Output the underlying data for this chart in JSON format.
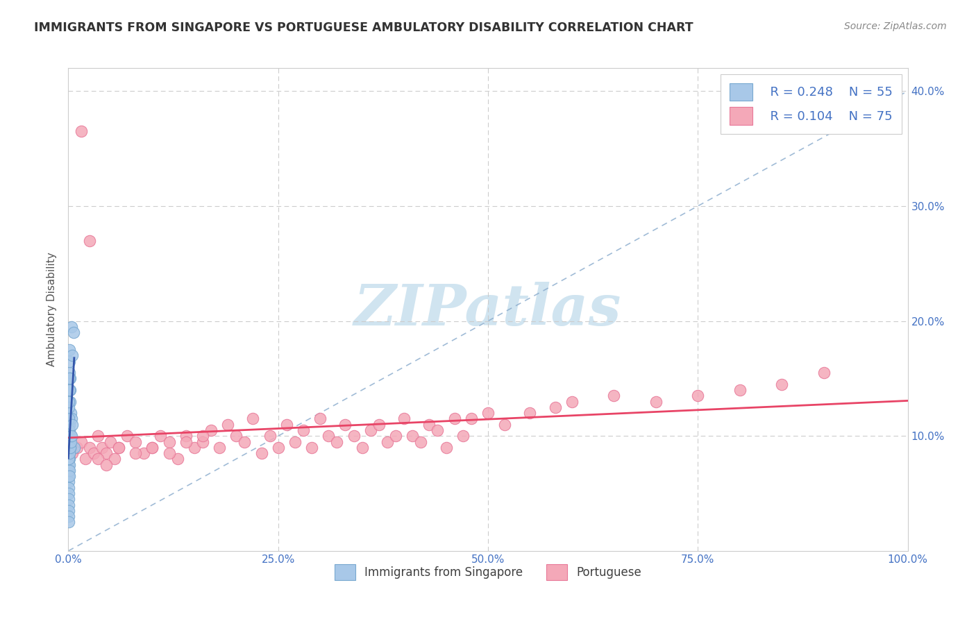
{
  "title": "IMMIGRANTS FROM SINGAPORE VS PORTUGUESE AMBULATORY DISABILITY CORRELATION CHART",
  "source": "Source: ZipAtlas.com",
  "ylabel": "Ambulatory Disability",
  "xlim": [
    0,
    100
  ],
  "ylim": [
    0,
    42
  ],
  "series1_color": "#a8c8e8",
  "series2_color": "#f4a8b8",
  "series1_edge": "#78a8d0",
  "series2_edge": "#e87898",
  "line1_color": "#3355aa",
  "line2_color": "#e84466",
  "diag_color": "#88aacc",
  "legend_text_color": "#4472c4",
  "legend_r1": "R = 0.248",
  "legend_n1": "N = 55",
  "legend_r2": "R = 0.104",
  "legend_n2": "N = 75",
  "legend_label1": "Immigrants from Singapore",
  "legend_label2": "Portuguese",
  "title_color": "#333333",
  "grid_color": "#cccccc",
  "watermark_color": "#d0e4f0",
  "background_color": "#ffffff",
  "singapore_x": [
    0.05,
    0.05,
    0.05,
    0.05,
    0.05,
    0.05,
    0.05,
    0.05,
    0.05,
    0.05,
    0.05,
    0.05,
    0.05,
    0.05,
    0.05,
    0.05,
    0.05,
    0.05,
    0.05,
    0.05,
    0.1,
    0.1,
    0.1,
    0.1,
    0.1,
    0.1,
    0.1,
    0.1,
    0.15,
    0.15,
    0.15,
    0.2,
    0.2,
    0.25,
    0.3,
    0.35,
    0.4,
    0.5,
    0.6,
    0.7,
    0.05,
    0.05,
    0.1,
    0.1,
    0.2,
    0.3,
    0.05,
    0.1,
    0.2,
    0.3,
    0.4,
    0.5,
    0.05,
    0.1,
    0.15
  ],
  "singapore_y": [
    9.0,
    9.2,
    9.5,
    9.8,
    10.0,
    10.2,
    10.5,
    8.5,
    8.0,
    7.5,
    7.0,
    6.5,
    6.0,
    5.5,
    5.0,
    4.5,
    4.0,
    3.5,
    3.0,
    2.5,
    9.5,
    10.0,
    11.0,
    8.5,
    8.0,
    7.5,
    7.0,
    6.5,
    15.5,
    16.5,
    17.5,
    14.0,
    15.0,
    13.0,
    12.0,
    11.5,
    19.5,
    17.0,
    19.0,
    9.0,
    11.5,
    12.5,
    9.5,
    10.5,
    9.0,
    10.0,
    8.0,
    8.5,
    9.0,
    9.5,
    10.0,
    11.0,
    13.0,
    14.0,
    15.0
  ],
  "portuguese_x": [
    0.5,
    1.0,
    1.5,
    2.0,
    2.5,
    3.0,
    3.5,
    4.0,
    4.5,
    5.0,
    5.5,
    6.0,
    7.0,
    8.0,
    9.0,
    10.0,
    11.0,
    12.0,
    13.0,
    14.0,
    15.0,
    16.0,
    17.0,
    18.0,
    19.0,
    20.0,
    21.0,
    22.0,
    23.0,
    24.0,
    25.0,
    26.0,
    27.0,
    28.0,
    29.0,
    30.0,
    31.0,
    32.0,
    33.0,
    34.0,
    35.0,
    36.0,
    37.0,
    38.0,
    39.0,
    40.0,
    41.0,
    42.0,
    43.0,
    44.0,
    45.0,
    46.0,
    47.0,
    48.0,
    50.0,
    52.0,
    55.0,
    58.0,
    60.0,
    65.0,
    70.0,
    75.0,
    80.0,
    85.0,
    90.0,
    1.5,
    2.5,
    3.5,
    4.5,
    6.0,
    8.0,
    10.0,
    12.0,
    14.0,
    16.0
  ],
  "portuguese_y": [
    8.5,
    9.0,
    9.5,
    8.0,
    9.0,
    8.5,
    10.0,
    9.0,
    8.5,
    9.5,
    8.0,
    9.0,
    10.0,
    9.5,
    8.5,
    9.0,
    10.0,
    9.5,
    8.0,
    10.0,
    9.0,
    9.5,
    10.5,
    9.0,
    11.0,
    10.0,
    9.5,
    11.5,
    8.5,
    10.0,
    9.0,
    11.0,
    9.5,
    10.5,
    9.0,
    11.5,
    10.0,
    9.5,
    11.0,
    10.0,
    9.0,
    10.5,
    11.0,
    9.5,
    10.0,
    11.5,
    10.0,
    9.5,
    11.0,
    10.5,
    9.0,
    11.5,
    10.0,
    11.5,
    12.0,
    11.0,
    12.0,
    12.5,
    13.0,
    13.5,
    13.0,
    13.5,
    14.0,
    14.5,
    15.5,
    36.5,
    27.0,
    8.0,
    7.5,
    9.0,
    8.5,
    9.0,
    8.5,
    9.5,
    10.0
  ]
}
